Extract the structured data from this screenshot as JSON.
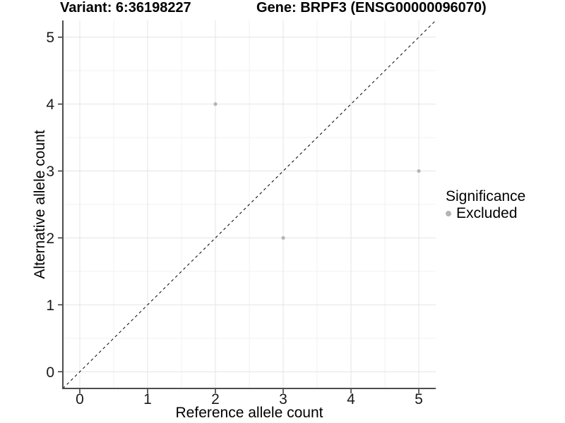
{
  "titles": {
    "variant": "Variant: 6:36198227",
    "gene": "Gene: BRPF3 (ENSG00000096070)"
  },
  "axes": {
    "x": {
      "title": "Reference allele count",
      "ticks": [
        0,
        1,
        2,
        3,
        4,
        5
      ]
    },
    "y": {
      "title": "Alternative allele count",
      "ticks": [
        0,
        1,
        2,
        3,
        4,
        5
      ]
    }
  },
  "legend": {
    "title": "Significance",
    "items": [
      {
        "label": "Excluded",
        "color": "#b5b5b5"
      }
    ]
  },
  "chart_data": {
    "type": "scatter",
    "title": "Variant: 6:36198227  /  Gene: BRPF3 (ENSG00000096070)",
    "xlabel": "Reference allele count",
    "ylabel": "Alternative allele count",
    "xlim": [
      -0.25,
      5.25
    ],
    "ylim": [
      -0.25,
      5.25
    ],
    "series": [
      {
        "name": "Excluded",
        "color": "#b5b5b5",
        "point_radius": 2.6,
        "points": [
          {
            "x": 2,
            "y": 4
          },
          {
            "x": 3,
            "y": 2
          },
          {
            "x": 5,
            "y": 3
          }
        ]
      }
    ],
    "reference_line": {
      "type": "identity",
      "style": "dashed",
      "color": "#000000",
      "dash": "4 4"
    },
    "grid": {
      "major": [
        0,
        1,
        2,
        3,
        4,
        5
      ],
      "minor": [
        0.5,
        1.5,
        2.5,
        3.5,
        4.5
      ],
      "major_color": "#e4e4e4",
      "minor_color": "#f2f2f2"
    },
    "axis_color": "#4d4d4d",
    "tick_color": "#333333",
    "legend_position": "right"
  }
}
